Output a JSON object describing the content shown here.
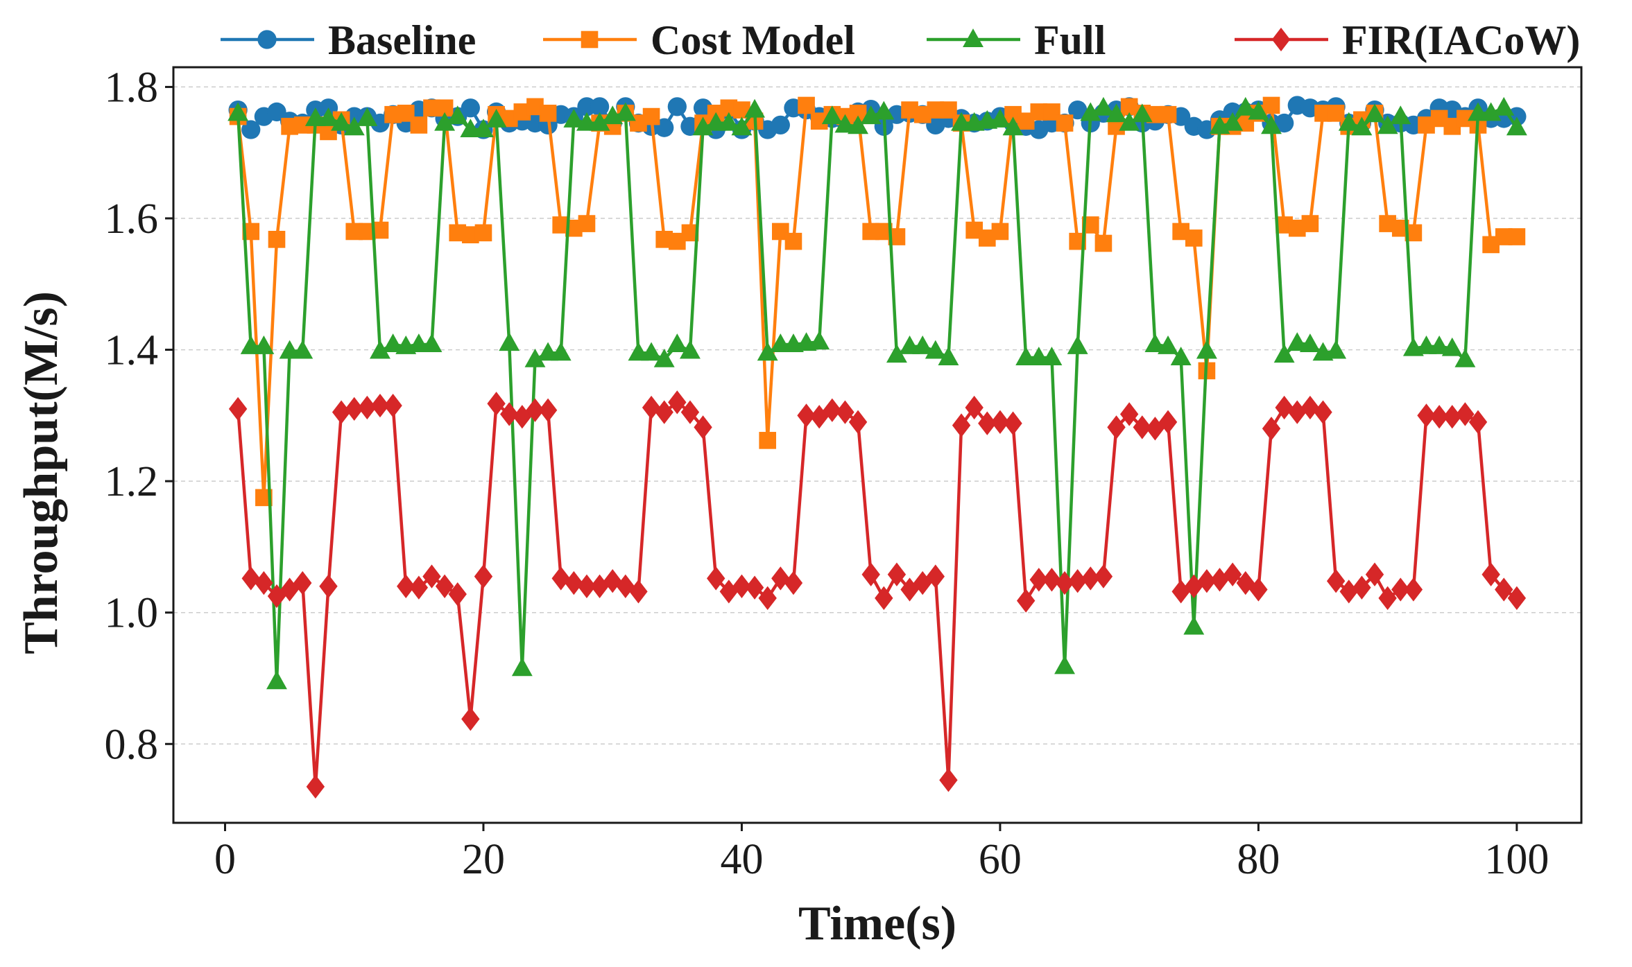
{
  "chart_data": {
    "type": "line",
    "title": "",
    "xlabel": "Time(s)",
    "ylabel": "Throughput(M/s)",
    "xlim": [
      -4,
      105
    ],
    "ylim": [
      0.68,
      1.83
    ],
    "xticks": [
      0,
      20,
      40,
      60,
      80,
      100
    ],
    "xtick_labels": [
      "0",
      "20",
      "40",
      "60",
      "80",
      "100"
    ],
    "yticks": [
      0.8,
      1.0,
      1.2,
      1.4,
      1.6,
      1.8
    ],
    "ytick_labels": [
      "0.8",
      "1.0",
      "1.2",
      "1.4",
      "1.6",
      "1.8"
    ],
    "grid": "horizontal dashed",
    "legend_position": "top",
    "x": [
      1,
      2,
      3,
      4,
      5,
      6,
      7,
      8,
      9,
      10,
      11,
      12,
      13,
      14,
      15,
      16,
      17,
      18,
      19,
      20,
      21,
      22,
      23,
      24,
      25,
      26,
      27,
      28,
      29,
      30,
      31,
      32,
      33,
      34,
      35,
      36,
      37,
      38,
      39,
      40,
      41,
      42,
      43,
      44,
      45,
      46,
      47,
      48,
      49,
      50,
      51,
      52,
      53,
      54,
      55,
      56,
      57,
      58,
      59,
      60,
      61,
      62,
      63,
      64,
      65,
      66,
      67,
      68,
      69,
      70,
      71,
      72,
      73,
      74,
      75,
      76,
      77,
      78,
      79,
      80,
      81,
      82,
      83,
      84,
      85,
      86,
      87,
      88,
      89,
      90,
      91,
      92,
      93,
      94,
      95,
      96,
      97,
      98,
      99,
      100
    ],
    "series": [
      {
        "name": "Baseline",
        "color": "#1f77b4",
        "marker": "circle",
        "values": [
          1.765,
          1.735,
          1.755,
          1.762,
          1.748,
          1.745,
          1.765,
          1.768,
          1.742,
          1.755,
          1.755,
          1.745,
          1.758,
          1.745,
          1.765,
          1.768,
          1.752,
          1.755,
          1.768,
          1.735,
          1.762,
          1.745,
          1.748,
          1.745,
          1.742,
          1.758,
          1.755,
          1.77,
          1.77,
          1.745,
          1.77,
          1.745,
          1.74,
          1.738,
          1.77,
          1.74,
          1.768,
          1.735,
          1.765,
          1.735,
          1.748,
          1.735,
          1.742,
          1.768,
          1.765,
          1.755,
          1.752,
          1.748,
          1.762,
          1.766,
          1.74,
          1.758,
          1.76,
          1.758,
          1.742,
          1.752,
          1.752,
          1.745,
          1.748,
          1.755,
          1.745,
          1.74,
          1.735,
          1.745,
          1.745,
          1.765,
          1.745,
          1.76,
          1.765,
          1.77,
          1.745,
          1.748,
          1.758,
          1.755,
          1.74,
          1.735,
          1.75,
          1.762,
          1.762,
          1.765,
          1.745,
          1.745,
          1.772,
          1.768,
          1.765,
          1.77,
          1.745,
          1.745,
          1.765,
          1.745,
          1.745,
          1.742,
          1.752,
          1.768,
          1.765,
          1.755,
          1.768,
          1.752,
          1.752,
          1.755
        ]
      },
      {
        "name": "Cost Model",
        "color": "#ff7f0e",
        "marker": "square",
        "values": [
          1.755,
          1.58,
          1.175,
          1.568,
          1.74,
          1.742,
          1.742,
          1.732,
          1.75,
          1.58,
          1.58,
          1.582,
          1.758,
          1.76,
          1.742,
          1.768,
          1.768,
          1.578,
          1.575,
          1.578,
          1.758,
          1.752,
          1.762,
          1.77,
          1.76,
          1.59,
          1.585,
          1.592,
          1.745,
          1.74,
          1.76,
          1.745,
          1.755,
          1.568,
          1.565,
          1.578,
          1.745,
          1.76,
          1.768,
          1.765,
          1.748,
          1.262,
          1.58,
          1.565,
          1.772,
          1.748,
          1.758,
          1.755,
          1.76,
          1.58,
          1.58,
          1.572,
          1.765,
          1.758,
          1.765,
          1.765,
          1.745,
          1.582,
          1.57,
          1.58,
          1.758,
          1.748,
          1.762,
          1.762,
          1.745,
          1.565,
          1.59,
          1.562,
          1.74,
          1.77,
          1.76,
          1.758,
          1.758,
          1.58,
          1.57,
          1.368,
          1.74,
          1.74,
          1.745,
          1.76,
          1.772,
          1.59,
          1.585,
          1.592,
          1.76,
          1.76,
          1.74,
          1.75,
          1.76,
          1.592,
          1.585,
          1.578,
          1.742,
          1.752,
          1.74,
          1.752,
          1.742,
          1.56,
          1.572,
          1.572
        ]
      },
      {
        "name": "Full",
        "color": "#2ca02c",
        "marker": "triangle",
        "values": [
          1.76,
          1.405,
          1.405,
          0.895,
          1.398,
          1.398,
          1.752,
          1.752,
          1.745,
          1.738,
          1.752,
          1.398,
          1.408,
          1.405,
          1.408,
          1.408,
          1.745,
          1.755,
          1.735,
          1.735,
          1.75,
          1.41,
          0.915,
          1.385,
          1.395,
          1.395,
          1.75,
          1.745,
          1.745,
          1.755,
          1.76,
          1.395,
          1.395,
          1.385,
          1.408,
          1.398,
          1.738,
          1.745,
          1.745,
          1.738,
          1.765,
          1.395,
          1.408,
          1.408,
          1.41,
          1.412,
          1.755,
          1.742,
          1.74,
          1.755,
          1.762,
          1.392,
          1.405,
          1.405,
          1.398,
          1.388,
          1.745,
          1.745,
          1.748,
          1.75,
          1.738,
          1.388,
          1.388,
          1.388,
          0.918,
          1.405,
          1.76,
          1.768,
          1.758,
          1.745,
          1.758,
          1.408,
          1.405,
          1.388,
          0.978,
          1.398,
          1.74,
          1.745,
          1.768,
          1.762,
          1.74,
          1.392,
          1.41,
          1.408,
          1.395,
          1.398,
          1.745,
          1.738,
          1.758,
          1.74,
          1.755,
          1.402,
          1.405,
          1.405,
          1.402,
          1.385,
          1.76,
          1.76,
          1.768,
          1.738
        ]
      },
      {
        "name": "FIR(IACoW)",
        "color": "#d62728",
        "marker": "diamond",
        "values": [
          1.31,
          1.052,
          1.045,
          1.025,
          1.035,
          1.045,
          0.735,
          1.04,
          1.305,
          1.31,
          1.312,
          1.315,
          1.315,
          1.04,
          1.038,
          1.055,
          1.04,
          1.028,
          0.838,
          1.055,
          1.318,
          1.302,
          1.298,
          1.308,
          1.308,
          1.052,
          1.045,
          1.04,
          1.04,
          1.048,
          1.04,
          1.032,
          1.312,
          1.305,
          1.32,
          1.305,
          1.282,
          1.052,
          1.032,
          1.04,
          1.038,
          1.022,
          1.052,
          1.045,
          1.3,
          1.298,
          1.308,
          1.305,
          1.29,
          1.058,
          1.022,
          1.058,
          1.035,
          1.045,
          1.055,
          0.745,
          1.285,
          1.312,
          1.288,
          1.29,
          1.288,
          1.018,
          1.05,
          1.05,
          1.045,
          1.048,
          1.052,
          1.055,
          1.282,
          1.302,
          1.282,
          1.28,
          1.29,
          1.032,
          1.04,
          1.048,
          1.05,
          1.058,
          1.045,
          1.035,
          1.28,
          1.312,
          1.305,
          1.312,
          1.305,
          1.048,
          1.032,
          1.038,
          1.058,
          1.022,
          1.035,
          1.035,
          1.3,
          1.298,
          1.298,
          1.302,
          1.29,
          1.058,
          1.035,
          1.022
        ]
      }
    ]
  }
}
